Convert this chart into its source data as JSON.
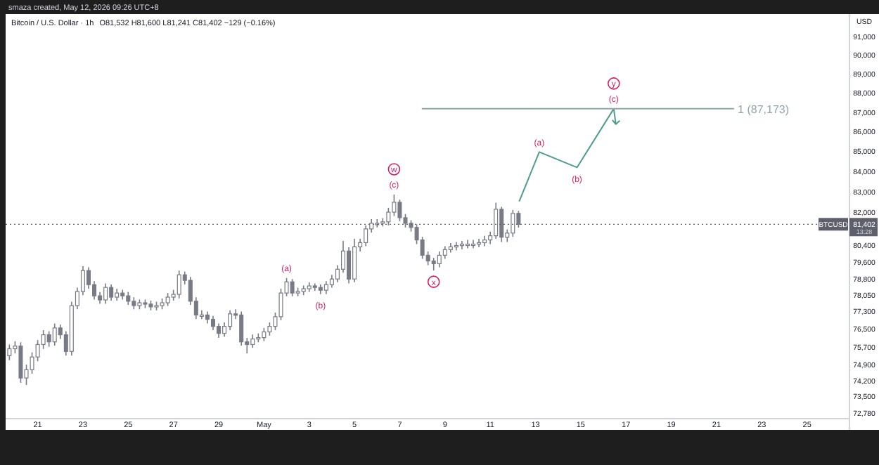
{
  "chart_data": {
    "type": "candlestick",
    "title": "Bitcoin / U.S. Dollar · 1h",
    "subtitle": "O81,532 H81,600 L81,241 C81,402 −129 (−0.16%)",
    "ylabel": "USD",
    "log": "y",
    "xlim": [
      "2026-04-19T14:00",
      "2026-05-26T21:00"
    ],
    "xticks": [
      {
        "value": "2026-04-21",
        "label": "21"
      },
      {
        "value": "2026-04-23",
        "label": "23"
      },
      {
        "value": "2026-04-25",
        "label": "25"
      },
      {
        "value": "2026-04-27",
        "label": "27"
      },
      {
        "value": "2026-04-29",
        "label": "29"
      },
      {
        "value": "2026-05-01",
        "label": "May"
      },
      {
        "value": "2026-05-03",
        "label": "3"
      },
      {
        "value": "2026-05-05",
        "label": "5"
      },
      {
        "value": "2026-05-07",
        "label": "7"
      },
      {
        "value": "2026-05-09",
        "label": "9"
      },
      {
        "value": "2026-05-11",
        "label": "11"
      },
      {
        "value": "2026-05-13",
        "label": "13"
      },
      {
        "value": "2026-05-15",
        "label": "15"
      },
      {
        "value": "2026-05-17",
        "label": "17"
      },
      {
        "value": "2026-05-19",
        "label": "19"
      },
      {
        "value": "2026-05-21",
        "label": "21"
      },
      {
        "value": "2026-05-23",
        "label": "23"
      },
      {
        "value": "2026-05-25",
        "label": "25"
      }
    ],
    "ylim": [
      72540,
      92210
    ],
    "yticks": [
      {
        "value": 91000,
        "label": "91,000"
      },
      {
        "value": 90000,
        "label": "90,000"
      },
      {
        "value": 89000,
        "label": "89,000"
      },
      {
        "value": 88000,
        "label": "88,000"
      },
      {
        "value": 87000,
        "label": "87,000"
      },
      {
        "value": 86000,
        "label": "86,000"
      },
      {
        "value": 85000,
        "label": "85,000"
      },
      {
        "value": 84000,
        "label": "84,000"
      },
      {
        "value": 83000,
        "label": "83,000"
      },
      {
        "value": 82000,
        "label": "82,000"
      },
      {
        "value": 80400,
        "label": "80,400"
      },
      {
        "value": 79600,
        "label": "79,600"
      },
      {
        "value": 78800,
        "label": "78,800"
      },
      {
        "value": 78050,
        "label": "78,050"
      },
      {
        "value": 77300,
        "label": "77,300"
      },
      {
        "value": 76500,
        "label": "76,500"
      },
      {
        "value": 75700,
        "label": "75,700"
      },
      {
        "value": 74900,
        "label": "74,900"
      },
      {
        "value": 74200,
        "label": "74,200"
      },
      {
        "value": 73500,
        "label": "73,500"
      },
      {
        "value": 72780,
        "label": "72,780"
      }
    ],
    "ref_lines": [
      {
        "axis": "y",
        "value": 81402,
        "label": "81,402",
        "color": "#5d606b"
      }
    ],
    "annotations": [
      "smaza created, May 12, 2026 09:26 UTC+8",
      "BTCUSD",
      "13:28",
      {
        "text": "(a)",
        "x": "2026-05-02T00:00",
        "y": 78850
      },
      {
        "text": "(b)",
        "x": "2026-05-03T12:00",
        "y": 78100
      },
      {
        "text": "(c)",
        "x": "2026-05-06T18:00",
        "y": 82850
      },
      {
        "text": "w",
        "x": "2026-05-06T18:00",
        "y": 82850
      },
      {
        "text": "x",
        "x": "2026-05-08T12:00",
        "y": 79200
      },
      {
        "text": "(a)",
        "x": "2026-05-13T04:00",
        "y": 84970
      },
      {
        "text": "(b)",
        "x": "2026-05-14T20:00",
        "y": 84190
      },
      {
        "text": "(c)",
        "x": "2026-05-16T11:00",
        "y": 87173
      },
      {
        "text": "y",
        "x": "2026-05-16T11:00",
        "y": 87173
      }
    ],
    "series": [
      {
        "color": "#787b86",
        "x": [
          "2026-04-19T18:00",
          "2026-04-20T00:00",
          "2026-04-20T06:00",
          "2026-04-20T12:00",
          "2026-04-20T18:00",
          "2026-04-21T00:00",
          "2026-04-21T06:00",
          "2026-04-21T12:00",
          "2026-04-21T18:00",
          "2026-04-22T00:00",
          "2026-04-22T06:00",
          "2026-04-22T12:00",
          "2026-04-22T18:00",
          "2026-04-23T00:00",
          "2026-04-23T06:00",
          "2026-04-23T12:00",
          "2026-04-23T18:00",
          "2026-04-24T00:00",
          "2026-04-24T06:00",
          "2026-04-24T12:00",
          "2026-04-24T18:00",
          "2026-04-25T00:00",
          "2026-04-25T06:00",
          "2026-04-25T12:00",
          "2026-04-25T18:00",
          "2026-04-26T00:00",
          "2026-04-26T06:00",
          "2026-04-26T12:00",
          "2026-04-26T18:00",
          "2026-04-27T00:00",
          "2026-04-27T06:00",
          "2026-04-27T12:00",
          "2026-04-27T18:00",
          "2026-04-28T00:00",
          "2026-04-28T06:00",
          "2026-04-28T12:00",
          "2026-04-28T18:00",
          "2026-04-29T00:00",
          "2026-04-29T06:00",
          "2026-04-29T12:00",
          "2026-04-29T18:00",
          "2026-04-30T00:00",
          "2026-04-30T06:00",
          "2026-04-30T12:00",
          "2026-04-30T18:00",
          "2026-05-01T00:00",
          "2026-05-01T06:00",
          "2026-05-01T12:00",
          "2026-05-01T18:00",
          "2026-05-02T00:00",
          "2026-05-02T06:00",
          "2026-05-02T12:00",
          "2026-05-02T18:00",
          "2026-05-03T00:00",
          "2026-05-03T06:00",
          "2026-05-03T12:00",
          "2026-05-03T18:00",
          "2026-05-04T00:00",
          "2026-05-04T06:00",
          "2026-05-04T12:00",
          "2026-05-04T18:00",
          "2026-05-05T00:00",
          "2026-05-05T06:00",
          "2026-05-05T12:00",
          "2026-05-05T18:00",
          "2026-05-06T00:00",
          "2026-05-06T06:00",
          "2026-05-06T12:00",
          "2026-05-06T18:00",
          "2026-05-07T00:00",
          "2026-05-07T06:00",
          "2026-05-07T12:00",
          "2026-05-07T18:00",
          "2026-05-08T00:00",
          "2026-05-08T06:00",
          "2026-05-08T12:00",
          "2026-05-08T18:00",
          "2026-05-09T00:00",
          "2026-05-09T06:00",
          "2026-05-09T12:00",
          "2026-05-09T18:00",
          "2026-05-10T00:00",
          "2026-05-10T06:00",
          "2026-05-10T12:00",
          "2026-05-10T18:00",
          "2026-05-11T00:00",
          "2026-05-11T06:00",
          "2026-05-11T12:00",
          "2026-05-11T18:00",
          "2026-05-12T00:00",
          "2026-05-12T06:00"
        ],
        "ohlc": [
          [
            75300,
            75800,
            75100,
            75610
          ],
          [
            75610,
            75950,
            75400,
            75730
          ],
          [
            75730,
            75900,
            74100,
            74310
          ],
          [
            74310,
            74900,
            74000,
            74680
          ],
          [
            74680,
            75450,
            74500,
            75240
          ],
          [
            75240,
            76000,
            75050,
            75800
          ],
          [
            75800,
            76450,
            75600,
            76240
          ],
          [
            76240,
            76400,
            75700,
            75920
          ],
          [
            75920,
            76750,
            75750,
            76550
          ],
          [
            76550,
            76700,
            76050,
            76240
          ],
          [
            76240,
            76400,
            75300,
            75490
          ],
          [
            75490,
            77750,
            75300,
            77570
          ],
          [
            77570,
            78400,
            77400,
            78220
          ],
          [
            78220,
            79400,
            78050,
            79200
          ],
          [
            79200,
            79350,
            78350,
            78540
          ],
          [
            78540,
            78700,
            77850,
            78020
          ],
          [
            78020,
            78200,
            77650,
            77830
          ],
          [
            77830,
            78600,
            77650,
            78410
          ],
          [
            78410,
            78550,
            77800,
            77960
          ],
          [
            77960,
            78350,
            77800,
            78150
          ],
          [
            78150,
            78300,
            77850,
            78020
          ],
          [
            78020,
            78200,
            77600,
            77770
          ],
          [
            77770,
            77950,
            77400,
            77570
          ],
          [
            77570,
            77850,
            77400,
            77700
          ],
          [
            77700,
            77850,
            77450,
            77640
          ],
          [
            77640,
            77800,
            77350,
            77510
          ],
          [
            77510,
            77750,
            77350,
            77570
          ],
          [
            77570,
            77900,
            77400,
            77700
          ],
          [
            77700,
            78150,
            77550,
            77960
          ],
          [
            77960,
            78300,
            77800,
            78090
          ],
          [
            78090,
            79200,
            77900,
            79000
          ],
          [
            79000,
            79150,
            78550,
            78740
          ],
          [
            78740,
            78900,
            77600,
            77770
          ],
          [
            77770,
            77950,
            76950,
            77140
          ],
          [
            77140,
            77350,
            76950,
            77140
          ],
          [
            77140,
            77300,
            76750,
            76940
          ],
          [
            76940,
            77100,
            76450,
            76620
          ],
          [
            76620,
            76750,
            76100,
            76300
          ],
          [
            76300,
            76800,
            76150,
            76620
          ],
          [
            76620,
            77350,
            76450,
            77190
          ],
          [
            77190,
            77400,
            76950,
            77140
          ],
          [
            77140,
            77300,
            75750,
            75920
          ],
          [
            75920,
            76100,
            75400,
            75800
          ],
          [
            75800,
            76250,
            75650,
            76050
          ],
          [
            76050,
            76300,
            75900,
            76110
          ],
          [
            76110,
            76550,
            75950,
            76370
          ],
          [
            76370,
            76800,
            76200,
            76620
          ],
          [
            76620,
            77250,
            76450,
            77060
          ],
          [
            77060,
            78350,
            76900,
            78150
          ],
          [
            78150,
            78850,
            78000,
            78670
          ],
          [
            78670,
            78800,
            78000,
            78150
          ],
          [
            78150,
            78400,
            78000,
            78220
          ],
          [
            78220,
            78500,
            78050,
            78350
          ],
          [
            78350,
            78650,
            78200,
            78480
          ],
          [
            78480,
            78600,
            78250,
            78410
          ],
          [
            78410,
            78550,
            78100,
            78280
          ],
          [
            78280,
            78700,
            78100,
            78540
          ],
          [
            78540,
            79000,
            78400,
            78800
          ],
          [
            78800,
            79450,
            78650,
            79260
          ],
          [
            79260,
            80600,
            79100,
            80120
          ],
          [
            80120,
            80300,
            78600,
            78800
          ],
          [
            78800,
            80700,
            78650,
            80320
          ],
          [
            80320,
            80700,
            80100,
            80520
          ],
          [
            80520,
            81350,
            80350,
            81180
          ],
          [
            81180,
            81650,
            81000,
            81450
          ],
          [
            81450,
            81650,
            81250,
            81450
          ],
          [
            81450,
            81700,
            81300,
            81520
          ],
          [
            81520,
            82200,
            81350,
            81990
          ],
          [
            81990,
            82850,
            81800,
            82470
          ],
          [
            82470,
            82600,
            81550,
            81720
          ],
          [
            81720,
            81900,
            81250,
            81450
          ],
          [
            81450,
            81600,
            81050,
            81250
          ],
          [
            81250,
            81400,
            80450,
            80650
          ],
          [
            80650,
            80800,
            79750,
            79920
          ],
          [
            79920,
            80100,
            79450,
            79650
          ],
          [
            79650,
            79800,
            79200,
            79520
          ],
          [
            79520,
            80100,
            79350,
            79920
          ],
          [
            79920,
            80350,
            79750,
            80190
          ],
          [
            80190,
            80500,
            80050,
            80320
          ],
          [
            80320,
            80550,
            80150,
            80380
          ],
          [
            80380,
            80600,
            80200,
            80450
          ],
          [
            80450,
            80650,
            80250,
            80450
          ],
          [
            80450,
            80650,
            80250,
            80450
          ],
          [
            80450,
            80700,
            80300,
            80520
          ],
          [
            80520,
            80850,
            80350,
            80650
          ],
          [
            80650,
            81050,
            80450,
            80850
          ],
          [
            80850,
            82450,
            80700,
            82130
          ],
          [
            82130,
            82250,
            80550,
            80780
          ],
          [
            80780,
            81150,
            80550,
            80980
          ],
          [
            80980,
            82100,
            80800,
            81930
          ],
          [
            81930,
            82050,
            81241,
            81402
          ]
        ]
      },
      {
        "type": "line",
        "color": "#4f9b8f",
        "x": [
          "2026-05-12T07:00",
          "2026-05-13T04:00",
          "2026-05-14T20:00",
          "2026-05-16T11:00"
        ],
        "values": [
          82540,
          84970,
          84190,
          87173
        ]
      },
      {
        "type": "line",
        "name": "1 (87,173)",
        "color": "#8fa8a6",
        "x": [
          "2026-05-08T00:00",
          "2026-05-21T18:00"
        ],
        "values": [
          87173,
          87173
        ]
      }
    ]
  }
}
